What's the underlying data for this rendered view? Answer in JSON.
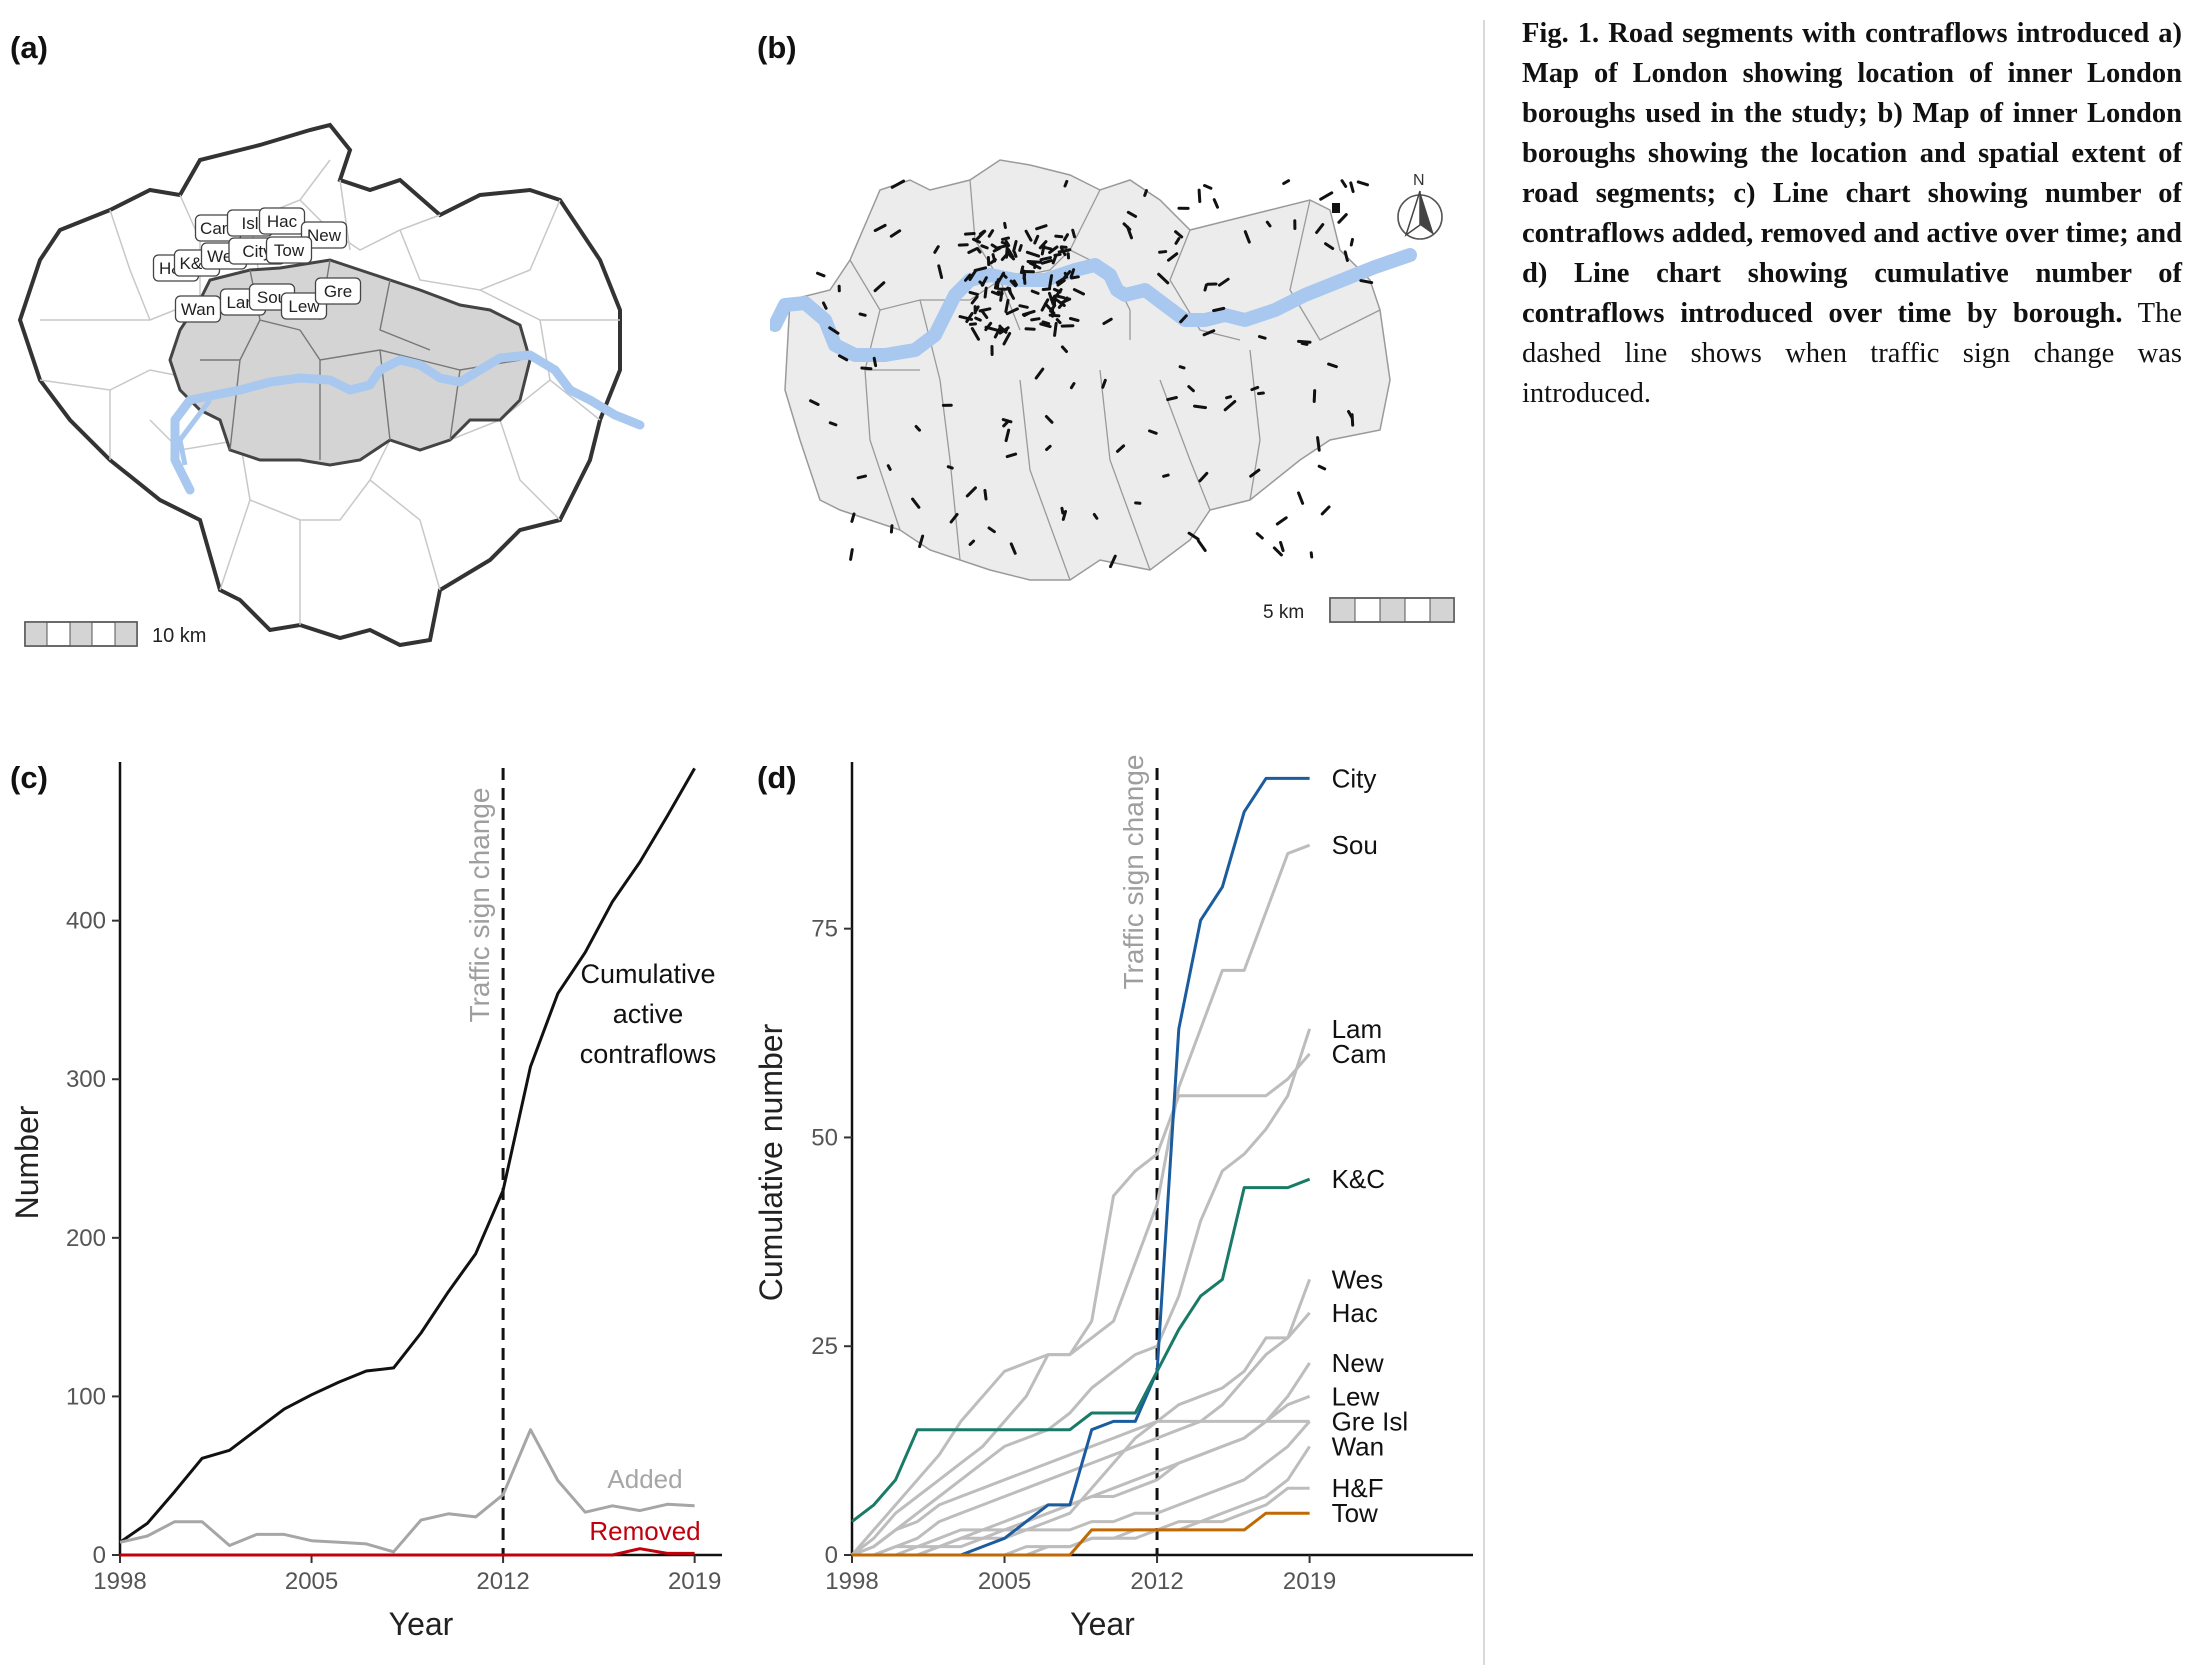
{
  "panels": {
    "a": "(a)",
    "b": "(b)",
    "c": "(c)",
    "d": "(d)"
  },
  "map_a": {
    "borough_labels": [
      "Cam",
      "Isl",
      "Hac",
      "New",
      "H&F",
      "K&C",
      "Wes",
      "City",
      "Tow",
      "Wan",
      "Lam",
      "Sou",
      "Lew",
      "Gre"
    ],
    "scale_label": "10 km",
    "colors": {
      "inner": "#d4d4d4",
      "outer": "#ffffff",
      "river": "#a9c8ef",
      "border": "#333333"
    }
  },
  "map_b": {
    "north_label": "N",
    "scale_label": "5 km",
    "colors": {
      "fill": "#ececec",
      "river": "#a9c8ef",
      "segments": "#111111"
    }
  },
  "chart_data": [
    {
      "type": "line",
      "panel": "c",
      "xlabel": "Year",
      "ylabel": "Number",
      "xlim": [
        1998,
        2020
      ],
      "ylim": [
        0,
        495
      ],
      "xticks": [
        1998,
        2005,
        2012,
        2019
      ],
      "yticks": [
        0,
        100,
        200,
        300,
        400
      ],
      "vline": {
        "x": 2012,
        "label": "Traffic sign change"
      },
      "x": [
        1998,
        1999,
        2000,
        2001,
        2002,
        2003,
        2004,
        2005,
        2006,
        2007,
        2008,
        2009,
        2010,
        2011,
        2012,
        2013,
        2014,
        2015,
        2016,
        2017,
        2018,
        2019
      ],
      "series": [
        {
          "name": "Cumulative active contraflows",
          "label_lines": [
            "Cumulative",
            "active",
            "contraflows"
          ],
          "color": "#111111",
          "values": [
            8,
            20,
            40,
            61,
            66,
            79,
            92,
            101,
            109,
            116,
            118,
            140,
            166,
            190,
            230,
            308,
            354,
            380,
            412,
            437,
            466,
            496
          ]
        },
        {
          "name": "Added",
          "color": "#a6a6a6",
          "values": [
            8,
            12,
            21,
            21,
            6,
            13,
            13,
            9,
            8,
            7,
            2,
            22,
            26,
            24,
            38,
            79,
            47,
            27,
            31,
            28,
            32,
            31
          ]
        },
        {
          "name": "Removed",
          "color": "#c0000b",
          "values": [
            0,
            0,
            0,
            0,
            0,
            0,
            0,
            0,
            0,
            0,
            0,
            0,
            0,
            0,
            0,
            0,
            0,
            0,
            0,
            4,
            1,
            1
          ]
        }
      ]
    },
    {
      "type": "line",
      "panel": "d",
      "xlabel": "Year",
      "ylabel": "Cumulative number",
      "xlim": [
        1998,
        2026.5
      ],
      "ylim": [
        0,
        94
      ],
      "xticks": [
        1998,
        2005,
        2012,
        2019
      ],
      "yticks": [
        0,
        25,
        50,
        75
      ],
      "vline": {
        "x": 2012,
        "label": "Traffic sign change"
      },
      "x": [
        1998,
        1999,
        2000,
        2001,
        2002,
        2003,
        2004,
        2005,
        2006,
        2007,
        2008,
        2009,
        2010,
        2011,
        2012,
        2013,
        2014,
        2015,
        2016,
        2017,
        2018,
        2019
      ],
      "series": [
        {
          "name": "City",
          "color": "#1b5c9e",
          "highlight": true,
          "values": [
            0,
            0,
            0,
            0,
            0,
            0,
            1,
            2,
            4,
            6,
            6,
            15,
            16,
            16,
            22,
            63,
            76,
            80,
            89,
            93,
            93,
            93
          ]
        },
        {
          "name": "Sou",
          "color": "#bdbdbd",
          "values": [
            0,
            3,
            6,
            9,
            12,
            16,
            19,
            22,
            23,
            24,
            24,
            26,
            28,
            35,
            42,
            56,
            63,
            70,
            70,
            77,
            84,
            85
          ]
        },
        {
          "name": "Lam",
          "color": "#bdbdbd",
          "values": [
            0,
            1,
            3,
            5,
            7,
            9,
            11,
            13,
            14,
            15,
            17,
            20,
            22,
            24,
            25,
            31,
            40,
            46,
            48,
            51,
            55,
            63
          ]
        },
        {
          "name": "Cam",
          "color": "#bdbdbd",
          "values": [
            0,
            2,
            5,
            7,
            9,
            11,
            13,
            16,
            19,
            24,
            24,
            28,
            43,
            46,
            48,
            55,
            55,
            55,
            55,
            55,
            57,
            60
          ]
        },
        {
          "name": "K&C",
          "color": "#1a7a68",
          "highlight": true,
          "values": [
            4,
            6,
            9,
            15,
            15,
            15,
            15,
            15,
            15,
            15,
            15,
            17,
            17,
            17,
            22,
            27,
            31,
            33,
            44,
            44,
            44,
            45
          ]
        },
        {
          "name": "Wes",
          "color": "#bdbdbd",
          "values": [
            0,
            1,
            3,
            4,
            6,
            7,
            8,
            9,
            10,
            11,
            12,
            13,
            14,
            15,
            16,
            18,
            19,
            20,
            22,
            26,
            26,
            33
          ]
        },
        {
          "name": "Hac",
          "color": "#bdbdbd",
          "values": [
            0,
            0,
            1,
            2,
            4,
            5,
            6,
            7,
            8,
            9,
            10,
            11,
            12,
            13,
            14,
            15,
            16,
            18,
            21,
            24,
            26,
            29
          ]
        },
        {
          "name": "New",
          "color": "#bdbdbd",
          "values": [
            0,
            0,
            0,
            1,
            1,
            2,
            3,
            3,
            4,
            5,
            6,
            7,
            7,
            8,
            9,
            11,
            12,
            13,
            14,
            16,
            19,
            23
          ]
        },
        {
          "name": "Lew",
          "color": "#bdbdbd",
          "values": [
            0,
            0,
            1,
            1,
            2,
            3,
            3,
            4,
            5,
            6,
            6,
            7,
            8,
            9,
            10,
            11,
            12,
            13,
            14,
            16,
            18,
            19
          ]
        },
        {
          "name": "Gre",
          "color": "#bdbdbd",
          "values": [
            0,
            0,
            0,
            0,
            1,
            1,
            2,
            2,
            3,
            3,
            3,
            4,
            4,
            5,
            5,
            6,
            7,
            8,
            9,
            11,
            13,
            16
          ]
        },
        {
          "name": "Isl",
          "color": "#bdbdbd",
          "values": [
            0,
            0,
            0,
            0,
            1,
            2,
            2,
            3,
            3,
            4,
            5,
            8,
            11,
            14,
            16,
            16,
            16,
            16,
            16,
            16,
            16,
            16
          ]
        },
        {
          "name": "Wan",
          "color": "#bdbdbd",
          "values": [
            0,
            0,
            0,
            0,
            0,
            0,
            0,
            0,
            1,
            1,
            1,
            2,
            2,
            3,
            3,
            4,
            4,
            5,
            6,
            7,
            9,
            13
          ]
        },
        {
          "name": "H&F",
          "color": "#bdbdbd",
          "values": [
            0,
            0,
            0,
            0,
            0,
            0,
            0,
            0,
            0,
            1,
            1,
            2,
            2,
            2,
            3,
            3,
            4,
            4,
            5,
            6,
            8,
            8
          ]
        },
        {
          "name": "Tow",
          "color": "#c06a05",
          "highlight": true,
          "values": [
            0,
            0,
            0,
            0,
            0,
            0,
            0,
            0,
            0,
            0,
            0,
            3,
            3,
            3,
            3,
            3,
            3,
            3,
            3,
            5,
            5,
            5
          ]
        }
      ],
      "end_labels": [
        {
          "text": "City",
          "y": 93
        },
        {
          "text": "Sou",
          "y": 85
        },
        {
          "text": "Lam",
          "y": 63
        },
        {
          "text": "Cam",
          "y": 60
        },
        {
          "text": "K&C",
          "y": 45
        },
        {
          "text": "Wes",
          "y": 33
        },
        {
          "text": "Hac",
          "y": 29
        },
        {
          "text": "New",
          "y": 23
        },
        {
          "text": "Lew",
          "y": 19
        },
        {
          "text": "Gre Isl",
          "y": 16
        },
        {
          "text": "Wan",
          "y": 13
        },
        {
          "text": "H&F",
          "y": 8
        },
        {
          "text": "Tow",
          "y": 5
        }
      ]
    }
  ],
  "caption": {
    "bold": "Fig. 1. Road segments with contraflows introduced a) Map of London showing location of inner London boroughs used in the study; b) Map of inner London boroughs showing the location and spatial extent of road segments; c) Line chart showing number of contraflows added, removed and active over time; and d) Line chart showing cumulative number of contraflows introduced over time by borough.",
    "normal": " The dashed line shows when traffic sign change was introduced."
  }
}
